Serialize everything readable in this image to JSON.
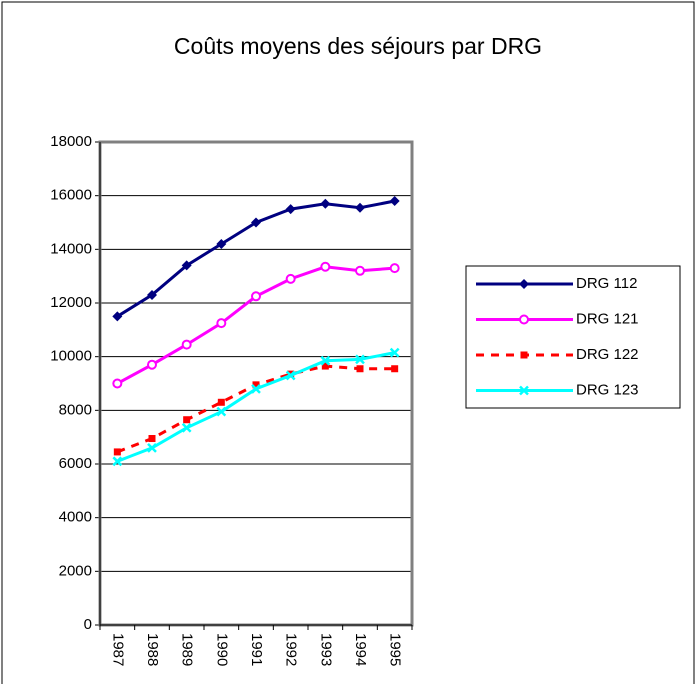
{
  "chart_data": {
    "type": "line",
    "title": "Coûts moyens des séjours par DRG",
    "categories": [
      "1987",
      "1988",
      "1989",
      "1990",
      "1991",
      "1992",
      "1993",
      "1994",
      "1995"
    ],
    "series": [
      {
        "name": "DRG 112",
        "color": "#000080",
        "marker": "diamond",
        "line_style": "solid",
        "values": [
          11500,
          12300,
          13400,
          14200,
          15000,
          15500,
          15700,
          15550,
          15800
        ]
      },
      {
        "name": "DRG 121",
        "color": "#ff00ff",
        "marker": "circle",
        "line_style": "solid",
        "values": [
          9000,
          9700,
          10450,
          11250,
          12250,
          12900,
          13350,
          13200,
          13300
        ]
      },
      {
        "name": "DRG 122",
        "color": "#ff0000",
        "marker": "square",
        "line_style": "dashed",
        "values": [
          6450,
          6950,
          7650,
          8300,
          8950,
          9350,
          9650,
          9550,
          9550
        ]
      },
      {
        "name": "DRG 123",
        "color": "#00ffff",
        "marker": "x",
        "line_style": "solid",
        "values": [
          6100,
          6600,
          7350,
          7950,
          8800,
          9300,
          9850,
          9900,
          10150
        ]
      }
    ],
    "ylim": [
      0,
      18000
    ],
    "yticks": [
      0,
      2000,
      4000,
      6000,
      8000,
      10000,
      12000,
      14000,
      16000,
      18000
    ],
    "grid": true,
    "legend": "right"
  }
}
